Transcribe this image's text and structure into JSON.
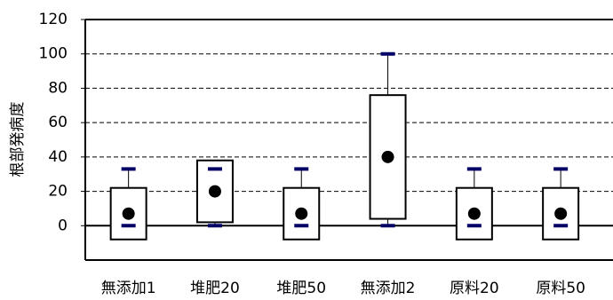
{
  "chart_data": {
    "type": "box",
    "y_label": "根部発病度",
    "categories": [
      "無添加1",
      "堆肥20",
      "堆肥50",
      "無添加2",
      "原料20",
      "原料50"
    ],
    "lower": [
      -8,
      2,
      -8,
      4,
      -8,
      -8
    ],
    "upper": [
      22,
      38,
      22,
      76,
      22,
      22
    ],
    "max": [
      33,
      33,
      33,
      100,
      33,
      33
    ],
    "min": [
      0,
      0,
      0,
      0,
      0,
      0
    ],
    "mean": [
      7,
      20,
      7,
      40,
      7,
      7
    ],
    "ylim": [
      -20,
      120
    ],
    "yticks": [
      0,
      20,
      40,
      60,
      80,
      100,
      120
    ],
    "grid": true,
    "marker_color": "#000066"
  }
}
